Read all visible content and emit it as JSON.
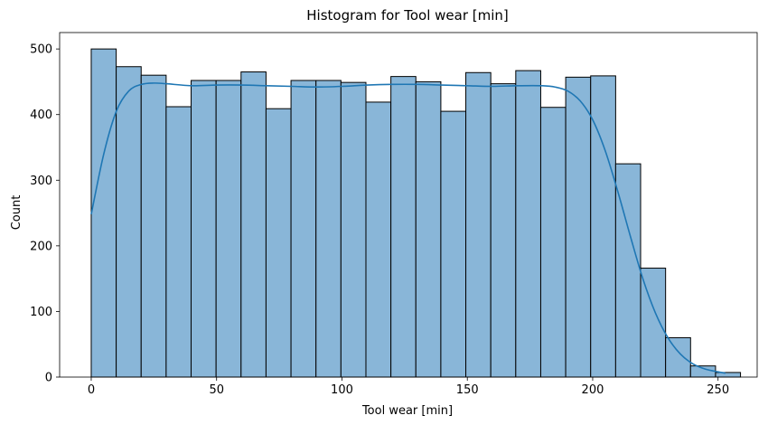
{
  "chart_data": {
    "type": "bar",
    "title": "Histogram for Tool wear [min]",
    "xlabel": "Tool wear [min]",
    "ylabel": "Count",
    "xlim": [
      -12.6,
      265.6
    ],
    "ylim": [
      0,
      525
    ],
    "xticks": [
      0,
      50,
      100,
      150,
      200,
      250
    ],
    "yticks": [
      0,
      100,
      200,
      300,
      400,
      500
    ],
    "grid": false,
    "bin_edges": [
      0,
      9.96,
      19.92,
      29.88,
      39.84,
      49.8,
      59.76,
      69.72,
      79.68,
      89.64,
      99.6,
      109.56,
      119.52,
      129.48,
      139.44,
      149.4,
      159.36,
      169.32,
      179.28,
      189.24,
      199.2,
      209.16,
      219.12,
      229.08,
      239.04,
      249.0,
      258.96
    ],
    "values": [
      500,
      473,
      460,
      412,
      452,
      452,
      465,
      409,
      452,
      452,
      449,
      419,
      458,
      450,
      405,
      464,
      447,
      467,
      411,
      457,
      459,
      325,
      166,
      60,
      17,
      7
    ],
    "kde": {
      "x": [
        0,
        5,
        10,
        15,
        20,
        25,
        30,
        40,
        50,
        60,
        70,
        80,
        90,
        100,
        110,
        120,
        130,
        140,
        150,
        160,
        170,
        180,
        185,
        190,
        195,
        200,
        205,
        210,
        215,
        220,
        225,
        230,
        235,
        240,
        245,
        250,
        253
      ],
      "y": [
        248,
        340,
        405,
        436,
        446,
        448,
        447,
        444,
        445,
        445,
        444,
        443,
        442,
        443,
        445,
        446,
        446,
        445,
        444,
        443,
        444,
        444,
        442,
        436,
        421,
        392,
        345,
        283,
        215,
        150,
        98,
        60,
        35,
        20,
        12,
        8,
        6
      ]
    },
    "colors": {
      "bar_fill": "#89b6d8",
      "bar_edge": "#000000",
      "kde_line": "#1f77b4"
    }
  }
}
